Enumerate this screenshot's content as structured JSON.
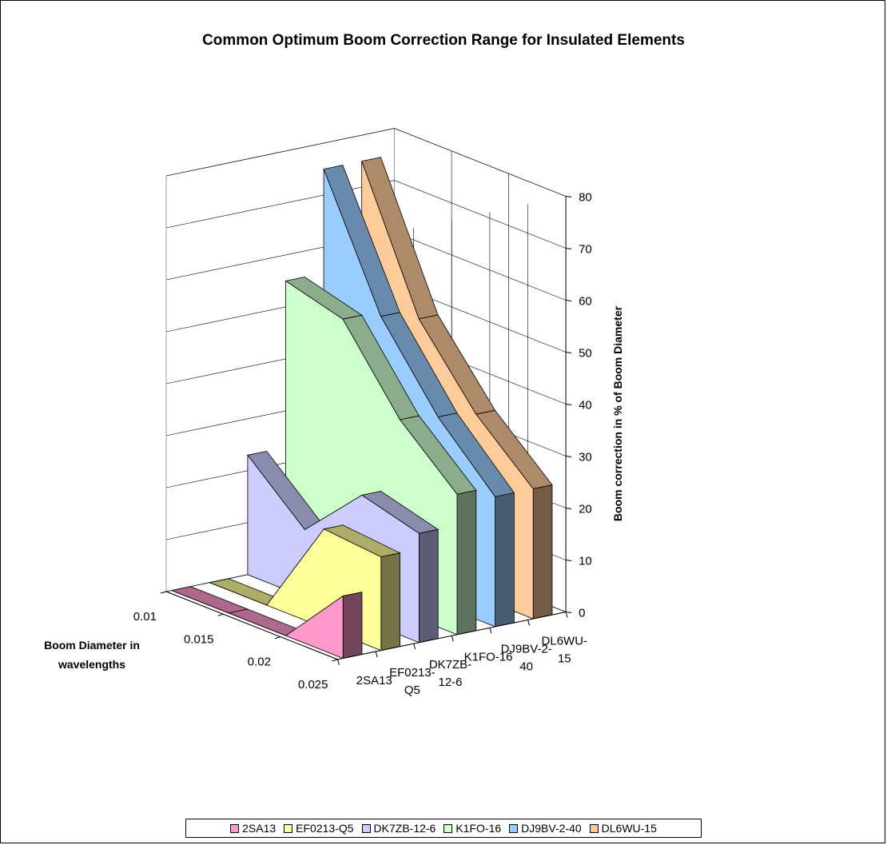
{
  "chart_data": {
    "type": "area",
    "title": "Common Optimum Boom Correction Range for Insulated Elements",
    "xlabel": "Boom Diameter in wavelengths",
    "ylabel": "Boom correction in % of Boom Diameter",
    "x": [
      "0.01",
      "0.015",
      "0.02",
      "0.025"
    ],
    "ylim": [
      0,
      80
    ],
    "yticks": [
      "0",
      "10",
      "20",
      "30",
      "40",
      "50",
      "60",
      "70",
      "80"
    ],
    "grid": true,
    "legend_position": "bottom",
    "series": [
      {
        "name": "2SA13",
        "label": "2SA13",
        "values": [
          0,
          0,
          0,
          12
        ],
        "color": "#ff99cc"
      },
      {
        "name": "EF0213-Q5",
        "label": "EF0213-\nQ5",
        "values": [
          0,
          0,
          19,
          18
        ],
        "color": "#ffff99"
      },
      {
        "name": "DK7ZB-12-6",
        "label": "DK7ZB-\n12-6",
        "values": [
          23,
          13,
          24,
          21
        ],
        "color": "#ccccff"
      },
      {
        "name": "K1FO-16",
        "label": "K1FO-16",
        "values": [
          55,
          52,
          37,
          27
        ],
        "color": "#ccffcc"
      },
      {
        "name": "DJ9BV-2-40",
        "label": "DJ9BV-2-\n40",
        "values": [
          75,
          51,
          36,
          25
        ],
        "color": "#99ccff"
      },
      {
        "name": "DL6WU-15",
        "label": "DL6WU-\n15",
        "values": [
          75,
          49,
          35,
          25
        ],
        "color": "#ffcc99"
      }
    ]
  }
}
